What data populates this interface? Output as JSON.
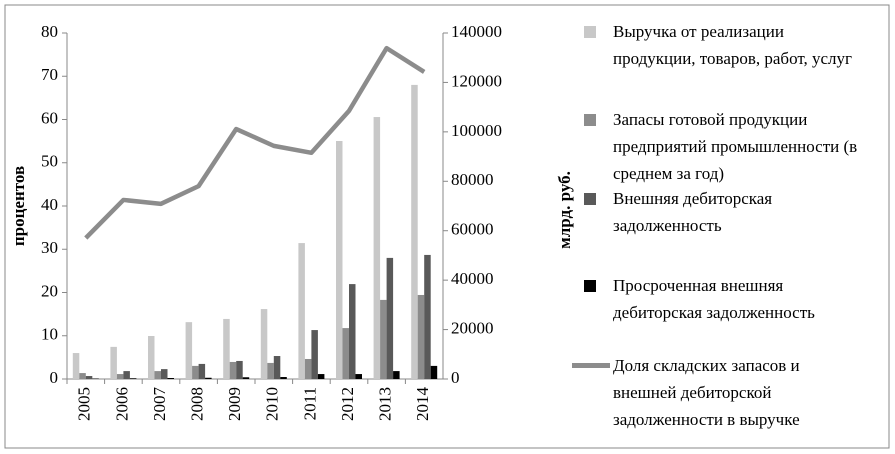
{
  "chart_data": {
    "type": "bar",
    "categories": [
      "2005",
      "2006",
      "2007",
      "2008",
      "2009",
      "2010",
      "2011",
      "2012",
      "2013",
      "2014"
    ],
    "ylabel": "процентов",
    "y2label": "млрд. руб.",
    "ylim": [
      0,
      80
    ],
    "yticks": [
      0,
      10,
      20,
      30,
      40,
      50,
      60,
      70,
      80
    ],
    "y2lim": [
      0,
      140000
    ],
    "y2ticks": [
      0,
      20000,
      40000,
      60000,
      80000,
      100000,
      120000,
      140000
    ],
    "series": [
      {
        "name": "Выручка от реализации продукции, товаров, работ, услуг",
        "type": "bar",
        "axis": "y2",
        "color": "#c8c8c8",
        "values": [
          10500,
          13000,
          17400,
          23000,
          24300,
          28300,
          55000,
          96300,
          106000,
          119000
        ]
      },
      {
        "name": "Запасы готовой продукции предприятий промышленности (в среднем за год)",
        "type": "bar",
        "axis": "y2",
        "color": "#8c8c8c",
        "values": [
          2400,
          2000,
          3200,
          5300,
          6900,
          6500,
          8100,
          20600,
          32000,
          34000
        ]
      },
      {
        "name": "Внешняя дебиторская задолженность",
        "type": "bar",
        "axis": "y2",
        "color": "#595959",
        "values": [
          1200,
          3200,
          4000,
          6100,
          7300,
          9300,
          19800,
          38400,
          49000,
          50200
        ]
      },
      {
        "name": "Просроченная внешняя дебиторская задолженность",
        "type": "bar",
        "axis": "y2",
        "color": "#000000",
        "values": [
          200,
          300,
          400,
          500,
          700,
          800,
          2000,
          2000,
          3200,
          5300
        ]
      },
      {
        "name": "Доля складских запасов и внешней дебиторской задолженности в выручке",
        "type": "line",
        "color": "#8c8c8c",
        "values": [
          32.6,
          41.4,
          40.5,
          44.6,
          57.8,
          53.9,
          52.3,
          62,
          76.5,
          71
        ]
      }
    ]
  }
}
